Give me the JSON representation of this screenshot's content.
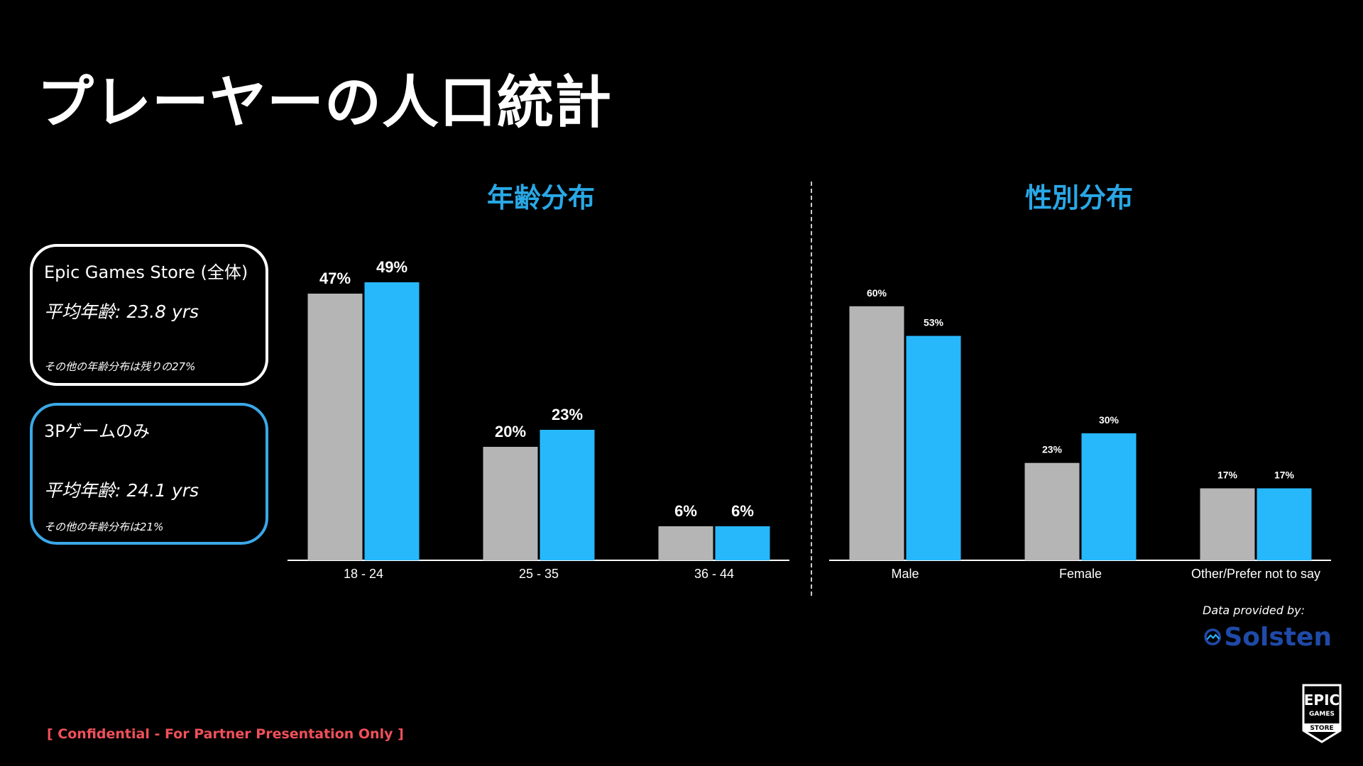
{
  "page": {
    "title": "プレーヤーの人口統計",
    "confidential": "[ Confidential - For Partner Presentation Only ]",
    "provider_label": "Data provided by:",
    "provider_logo": "Solsten",
    "store_logo": {
      "line1": "EPIC",
      "line2": "GAMES",
      "line3": "STORE"
    }
  },
  "legend": [
    {
      "name": "Epic Games Store (全体)",
      "avg": "平均年齢: 23.8 yrs",
      "note": "その他の年齢分布は残りの27%",
      "color": "#b5b5b5",
      "border": "#ffffff"
    },
    {
      "name": "3Pゲームのみ",
      "avg": "平均年齢: 24.1 yrs",
      "note": "その他の年齢分布は21%",
      "color": "#27b8fb",
      "border": "#3aa8e8"
    }
  ],
  "colors": {
    "title_accent": "#29a8e6",
    "series_all": "#b5b5b5",
    "series_3p": "#27b8fb",
    "confidential": "#f0505a"
  },
  "chart_data": [
    {
      "type": "bar",
      "title": "年齢分布",
      "categories": [
        "18 - 24",
        "25 - 35",
        "36 - 44"
      ],
      "series": [
        {
          "values": [
            47,
            20,
            6
          ],
          "labels": [
            "47%",
            "20%",
            "6%"
          ],
          "color": "#b5b5b5"
        },
        {
          "values": [
            49,
            23,
            6
          ],
          "labels": [
            "49%",
            "23%",
            "6%"
          ],
          "color": "#27b8fb"
        }
      ],
      "ylim": [
        0,
        50
      ],
      "unit": "%"
    },
    {
      "type": "bar",
      "title": "性別分布",
      "categories": [
        "Male",
        "Female",
        "Other/Prefer not to say"
      ],
      "series": [
        {
          "values": [
            60,
            23,
            17
          ],
          "labels": [
            "60%",
            "23%",
            "17%"
          ],
          "color": "#b5b5b5"
        },
        {
          "values": [
            53,
            30,
            17
          ],
          "labels": [
            "53%",
            "30%",
            "17%"
          ],
          "color": "#27b8fb"
        }
      ],
      "ylim": [
        0,
        60
      ],
      "unit": "%"
    }
  ]
}
